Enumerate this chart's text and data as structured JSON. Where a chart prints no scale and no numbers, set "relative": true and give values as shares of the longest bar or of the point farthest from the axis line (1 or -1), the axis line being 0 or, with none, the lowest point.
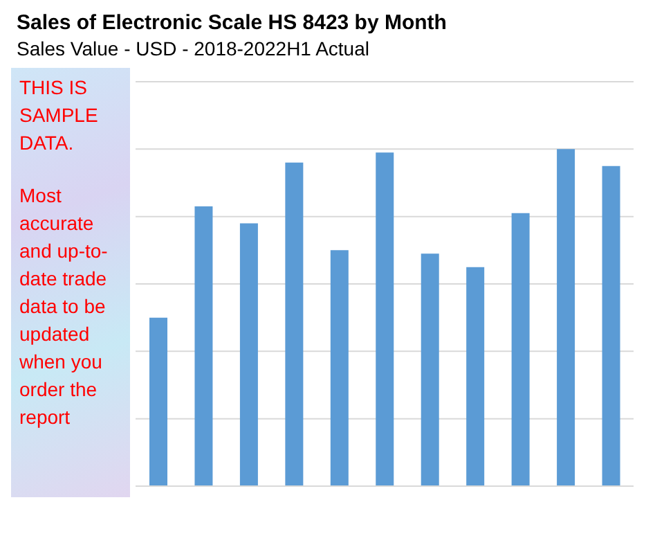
{
  "chart_data": {
    "type": "bar",
    "title": "Sales of Electronic Scale HS 8423 by Month",
    "subtitle": "Sales Value - USD - 2018-2022H1 Actual",
    "categories": [
      null,
      null,
      null,
      null,
      null,
      null,
      null,
      null,
      null,
      null,
      null
    ],
    "values": [
      0.5,
      0.83,
      0.78,
      0.96,
      0.7,
      0.99,
      0.69,
      0.65,
      0.81,
      1,
      0.95
    ],
    "color": "#5b9bd5",
    "relative": true,
    "grid": "y",
    "annotations": [
      "THIS IS SAMPLE DATA.",
      "Most accurate and up-to-date trade data to be updated when you order the report"
    ]
  }
}
